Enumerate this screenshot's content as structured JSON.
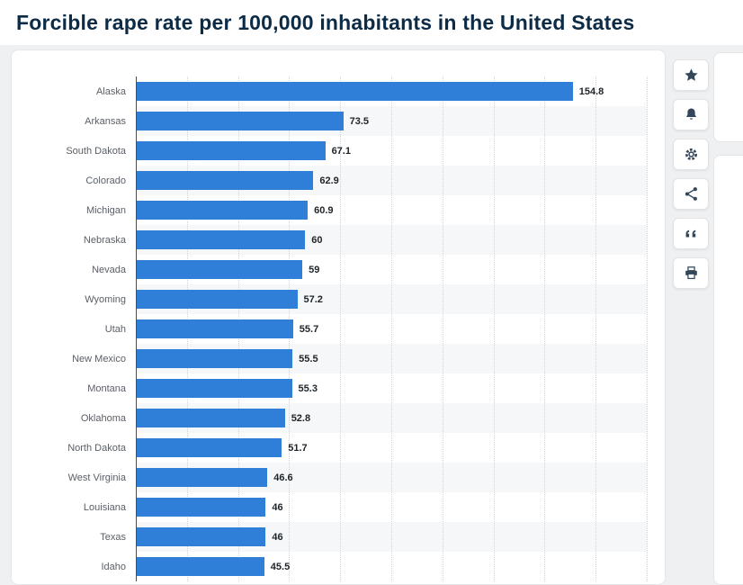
{
  "page": {
    "title": "Forcible rape rate per 100,000 inhabitants in the United States"
  },
  "chart_data": {
    "type": "bar",
    "orientation": "horizontal",
    "title": "Forcible rape rate per 100,000 inhabitants in the United States",
    "categories": [
      "Alaska",
      "Arkansas",
      "South Dakota",
      "Colorado",
      "Michigan",
      "Nebraska",
      "Nevada",
      "Wyoming",
      "Utah",
      "New Mexico",
      "Montana",
      "Oklahoma",
      "North Dakota",
      "West Virginia",
      "Louisiana",
      "Texas",
      "Idaho"
    ],
    "values": [
      154.8,
      73.5,
      67.1,
      62.9,
      60.9,
      60,
      59,
      57.2,
      55.7,
      55.5,
      55.3,
      52.8,
      51.7,
      46.6,
      46,
      46,
      45.5
    ],
    "value_labels": [
      "154.8",
      "73.5",
      "67.1",
      "62.9",
      "60.9",
      "60",
      "59",
      "57.2",
      "55.7",
      "55.5",
      "55.3",
      "52.8",
      "51.7",
      "46.6",
      "46",
      "46",
      "45.5"
    ],
    "xlim": [
      0,
      181
    ],
    "grid": "vertical-dotted",
    "legend": "none",
    "xlabel": "",
    "ylabel": ""
  },
  "toolbar": {
    "buttons": [
      {
        "id": "favorite",
        "icon": "star-icon"
      },
      {
        "id": "alerts",
        "icon": "bell-icon"
      },
      {
        "id": "settings",
        "icon": "gear-icon"
      },
      {
        "id": "share",
        "icon": "share-icon"
      },
      {
        "id": "cite",
        "icon": "quote-icon"
      },
      {
        "id": "print",
        "icon": "printer-icon"
      }
    ]
  },
  "colors": {
    "bar": "#2f7ed8",
    "title_text": "#0c2b46",
    "icon": "#33475b",
    "page_background": "#eef0f2",
    "card_background": "#ffffff"
  }
}
